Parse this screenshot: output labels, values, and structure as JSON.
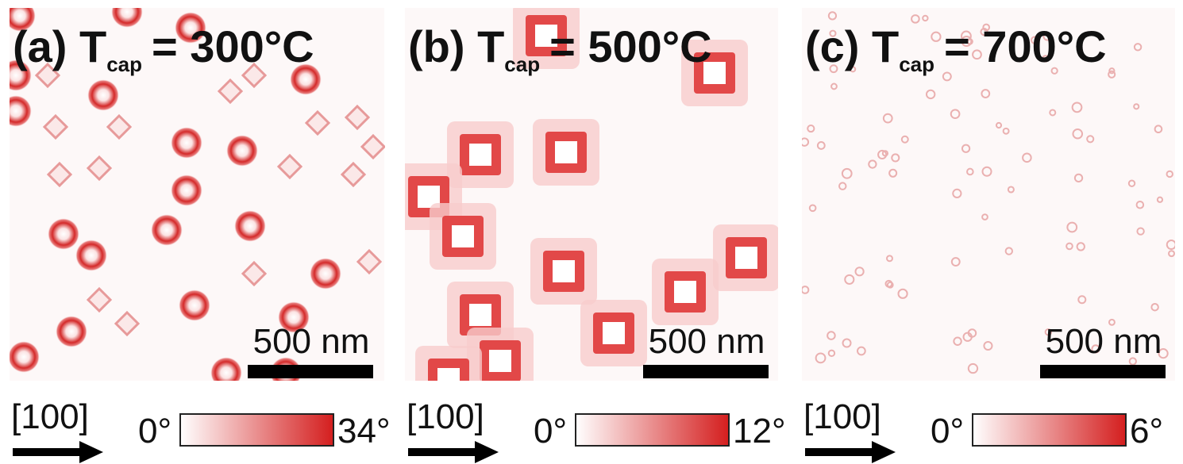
{
  "panels": [
    {
      "label": "(a) T",
      "subscript": "cap",
      "temperature": "= 300°C",
      "scale_bar": "500 nm",
      "direction": "[100]",
      "colorbar_min": "0°",
      "colorbar_max": "34°"
    },
    {
      "label": "(b) T",
      "subscript": "cap",
      "temperature": "= 500°C",
      "scale_bar": "500 nm",
      "direction": "[100]",
      "colorbar_min": "0°",
      "colorbar_max": "12°"
    },
    {
      "label": "(c) T",
      "subscript": "cap",
      "temperature": "= 700°C",
      "scale_bar": "500 nm",
      "direction": "[100]",
      "colorbar_min": "0°",
      "colorbar_max": "6°"
    }
  ]
}
